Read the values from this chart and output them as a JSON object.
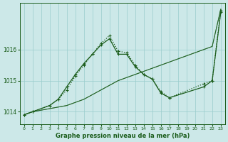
{
  "xlabel": "Graphe pression niveau de la mer (hPa)",
  "bg_color": "#cce8e8",
  "grid_color": "#99cccc",
  "line_color": "#1a5c1a",
  "ylim": [
    1013.6,
    1017.5
  ],
  "xlim": [
    -0.5,
    23.5
  ],
  "yticks": [
    1014,
    1015,
    1016
  ],
  "xticks": [
    0,
    1,
    2,
    3,
    4,
    5,
    6,
    7,
    8,
    9,
    10,
    11,
    12,
    13,
    14,
    15,
    16,
    17,
    18,
    19,
    20,
    21,
    22,
    23
  ],
  "series1_x": [
    0,
    1,
    2,
    3,
    4,
    5,
    6,
    7,
    8,
    9,
    10,
    11,
    12,
    13,
    14,
    15,
    16,
    17,
    18,
    19,
    20,
    21,
    22,
    23
  ],
  "series1_y": [
    1013.9,
    1014.0,
    1014.05,
    1014.1,
    1014.15,
    1014.2,
    1014.3,
    1014.4,
    1014.55,
    1014.7,
    1014.85,
    1015.0,
    1015.1,
    1015.2,
    1015.3,
    1015.4,
    1015.5,
    1015.6,
    1015.7,
    1015.8,
    1015.9,
    1016.0,
    1016.1,
    1017.3
  ],
  "series2_x": [
    0,
    1,
    2,
    3,
    4,
    5,
    6,
    7,
    8,
    9,
    10,
    11,
    12,
    13,
    14,
    15,
    16,
    17,
    18,
    19,
    20,
    21,
    22,
    23
  ],
  "series2_y": [
    1013.9,
    1014.0,
    1014.05,
    1014.1,
    1014.15,
    1014.2,
    1014.3,
    1014.4,
    1014.55,
    1014.7,
    1014.85,
    1015.0,
    1015.1,
    1015.2,
    1015.3,
    1015.4,
    1015.5,
    1015.6,
    1015.7,
    1015.8,
    1015.9,
    1016.0,
    1016.1,
    1017.3
  ],
  "series3_x": [
    0,
    1,
    3,
    4,
    5,
    6,
    7,
    8,
    9,
    10,
    11,
    12,
    13,
    14,
    15,
    16,
    17,
    21,
    22,
    23
  ],
  "series3_y": [
    1013.9,
    1014.0,
    1014.2,
    1014.4,
    1014.7,
    1015.15,
    1015.5,
    1015.85,
    1016.2,
    1016.45,
    1015.95,
    1015.9,
    1015.5,
    1015.2,
    1015.05,
    1014.65,
    1014.45,
    1014.9,
    1015.0,
    1017.25
  ],
  "series4_x": [
    0,
    1,
    3,
    4,
    5,
    6,
    7,
    8,
    9,
    10,
    11,
    12,
    13,
    14,
    15,
    16,
    17,
    21,
    22,
    23
  ],
  "series4_y": [
    1013.9,
    1014.0,
    1014.2,
    1014.4,
    1014.8,
    1015.2,
    1015.55,
    1015.85,
    1016.15,
    1016.35,
    1015.85,
    1015.85,
    1015.45,
    1015.2,
    1015.05,
    1014.6,
    1014.45,
    1014.8,
    1015.0,
    1017.2
  ]
}
